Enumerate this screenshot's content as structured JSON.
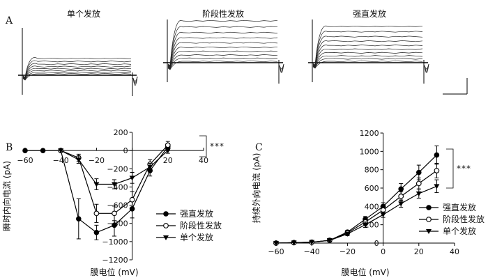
{
  "figure": {
    "panel_a": {
      "letter": "A"
    },
    "panel_b": {
      "letter": "B"
    },
    "panel_c": {
      "letter": "C"
    }
  },
  "chart_data": [
    {
      "type": "line",
      "panel": "A",
      "description_only_structure": "voltage-clamp current traces, three firing phenotypes",
      "series_titles": [
        "单个发放",
        "阶段性发放",
        "强直发放"
      ]
    },
    {
      "type": "line",
      "panel": "B",
      "xlabel": "膜电位 (mV)",
      "ylabel": "瞬时内向电流 (pA)",
      "xlim": [
        -60,
        40
      ],
      "ylim": [
        -1200,
        200
      ],
      "xticks": [
        -60,
        -40,
        -20,
        0,
        20,
        40
      ],
      "yticks": [
        200,
        0,
        -200,
        -400,
        -600,
        -800,
        -1000,
        -1200
      ],
      "xtick_labels": [
        "−60",
        "−40",
        "−20",
        "0",
        "20",
        "40"
      ],
      "ytick_labels": [
        "200",
        "0",
        "−200",
        "−400",
        "−600",
        "−800",
        "−1000",
        "−1200"
      ],
      "legend": [
        "强直发放",
        "阶段性发放",
        "单个发放"
      ],
      "significance": "***",
      "series": [
        {
          "name": "强直发放",
          "marker": "filled-circle",
          "x": [
            -60,
            -50,
            -40,
            -30,
            -20,
            -10,
            0,
            10,
            20
          ],
          "y": [
            0,
            0,
            0,
            -750,
            -900,
            -820,
            -640,
            -220,
            40
          ],
          "err": [
            0,
            0,
            0,
            220,
            80,
            120,
            100,
            60,
            40
          ]
        },
        {
          "name": "阶段性发放",
          "marker": "open-circle",
          "x": [
            -40,
            -30,
            -20,
            -10,
            0,
            10,
            20
          ],
          "y": [
            0,
            -80,
            -690,
            -690,
            -540,
            -150,
            60
          ],
          "err": [
            0,
            40,
            100,
            80,
            90,
            50,
            40
          ]
        },
        {
          "name": "单个发放",
          "marker": "down-triangle",
          "x": [
            -40,
            -30,
            -20,
            -10,
            0,
            10,
            20
          ],
          "y": [
            0,
            -100,
            -370,
            -370,
            -300,
            -180,
            0
          ],
          "err": [
            0,
            40,
            60,
            50,
            60,
            40,
            30
          ]
        }
      ]
    },
    {
      "type": "line",
      "panel": "C",
      "xlabel": "膜电位 (mV)",
      "ylabel": "持续外向电流 (pA)",
      "xlim": [
        -60,
        40
      ],
      "ylim": [
        0,
        1200
      ],
      "xticks": [
        -60,
        -40,
        -20,
        0,
        20,
        40
      ],
      "yticks": [
        0,
        200,
        400,
        600,
        800,
        1000,
        1200
      ],
      "xtick_labels": [
        "−60",
        "−40",
        "−20",
        "0",
        "20",
        "40"
      ],
      "ytick_labels": [
        "0",
        "200",
        "400",
        "600",
        "800",
        "1000",
        "1200"
      ],
      "legend": [
        "强直发放",
        "阶段性发放",
        "单个发放"
      ],
      "significance": "***",
      "series": [
        {
          "name": "强直发放",
          "marker": "filled-circle",
          "x": [
            -60,
            -50,
            -40,
            -30,
            -20,
            -10,
            0,
            10,
            20,
            30
          ],
          "y": [
            0,
            5,
            10,
            30,
            120,
            260,
            400,
            590,
            770,
            960
          ],
          "err": [
            0,
            0,
            0,
            10,
            20,
            30,
            40,
            60,
            80,
            100
          ]
        },
        {
          "name": "阶段性发放",
          "marker": "open-circle",
          "x": [
            -60,
            -50,
            -40,
            -30,
            -20,
            -10,
            0,
            10,
            20,
            30
          ],
          "y": [
            0,
            5,
            10,
            30,
            110,
            230,
            360,
            510,
            650,
            790
          ],
          "err": [
            0,
            0,
            0,
            10,
            20,
            30,
            40,
            50,
            60,
            80
          ]
        },
        {
          "name": "单个发放",
          "marker": "down-triangle",
          "x": [
            -60,
            -50,
            -40,
            -30,
            -20,
            -10,
            0,
            10,
            20,
            30
          ],
          "y": [
            0,
            5,
            10,
            30,
            100,
            200,
            310,
            430,
            540,
            620
          ],
          "err": [
            0,
            0,
            0,
            10,
            20,
            30,
            30,
            40,
            50,
            70
          ]
        }
      ]
    }
  ]
}
